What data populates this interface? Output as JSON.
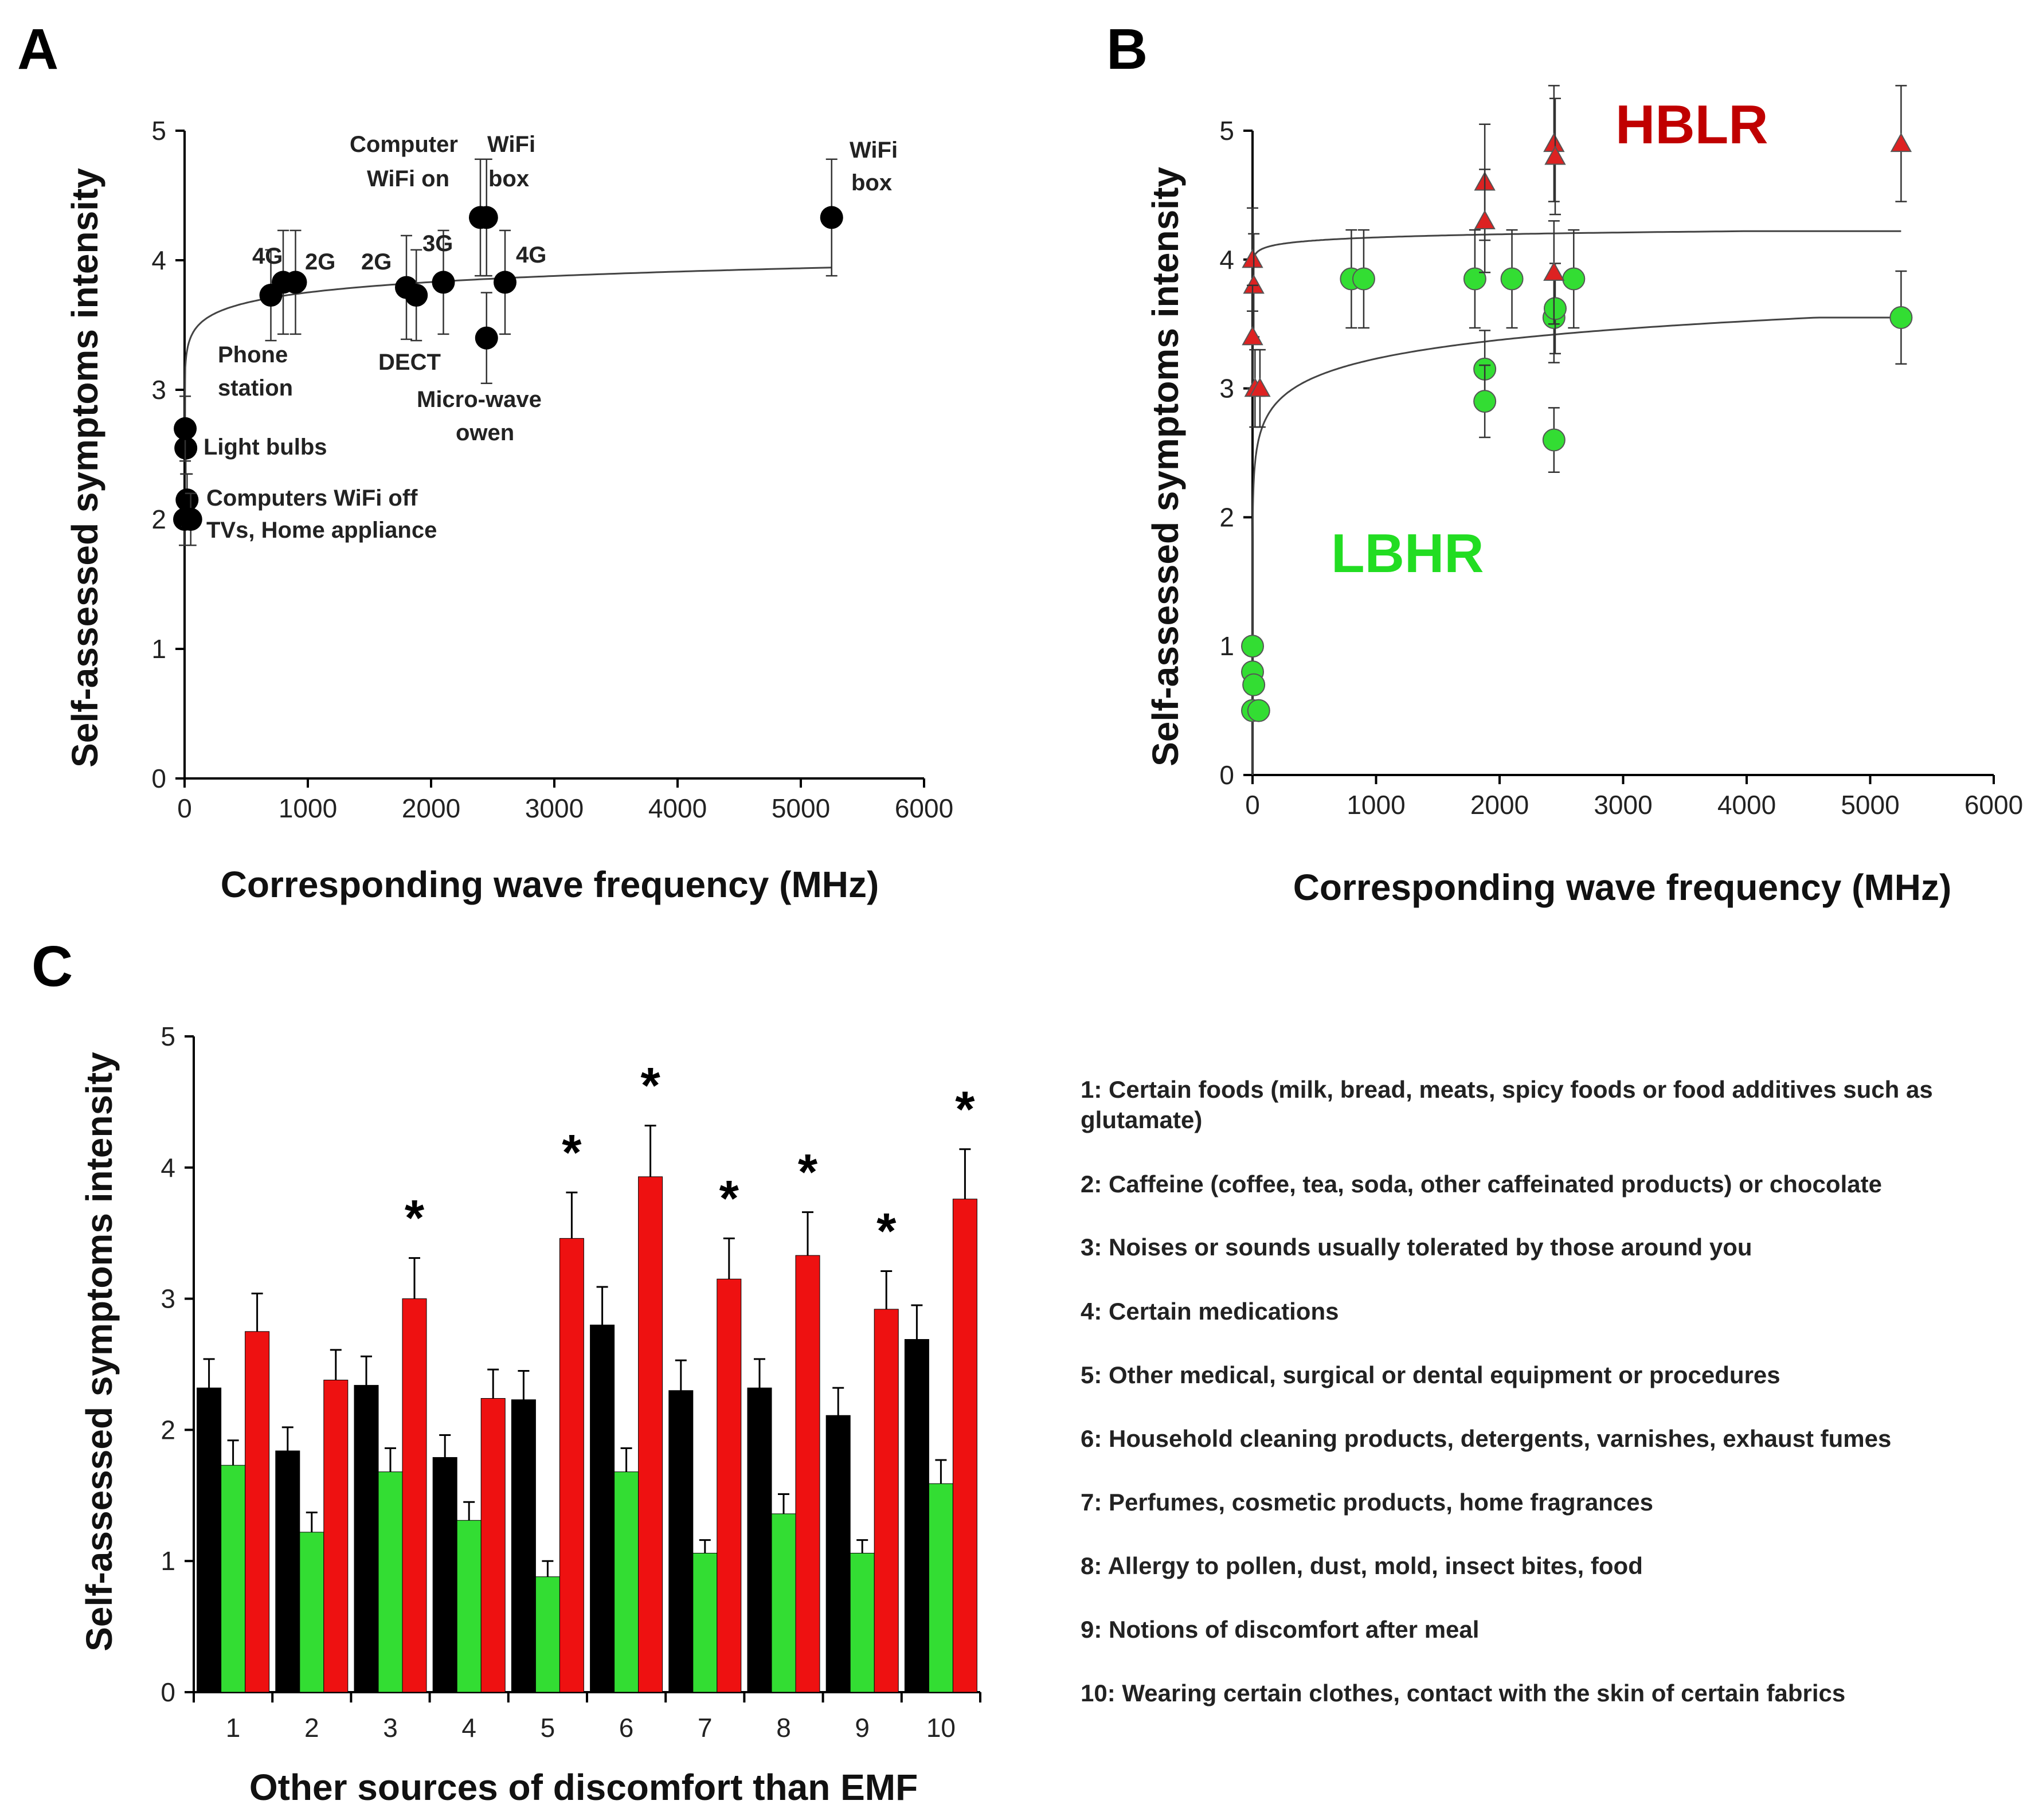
{
  "colors": {
    "black": "#000000",
    "green": "#33dd33",
    "red": "#ee1111",
    "hblr_text": "#c00000",
    "lbhr_text": "#22dd22",
    "curve": "#444444"
  },
  "panels": {
    "a": {
      "letter": "A"
    },
    "b": {
      "letter": "B"
    },
    "c": {
      "letter": "C"
    }
  },
  "chart_data": [
    {
      "panel": "A",
      "type": "scatter",
      "xlabel": "Corresponding wave frequency (MHz)",
      "ylabel": "Self-assessed symptoms intensity",
      "xlim": [
        0,
        6000
      ],
      "ylim": [
        0,
        5
      ],
      "xticks": [
        "0",
        "1000",
        "2000",
        "3000",
        "4000",
        "5000",
        "6000"
      ],
      "yticks": [
        "0",
        "1",
        "2",
        "3",
        "4",
        "5"
      ],
      "points": [
        {
          "x": 0,
          "y": 2.0,
          "err": 0.2
        },
        {
          "x": 20,
          "y": 2.15,
          "err": 0.2
        },
        {
          "x": 10,
          "y": 2.55,
          "err": 0.2
        },
        {
          "x": 5,
          "y": 2.7,
          "err": 0.25
        },
        {
          "x": 50,
          "y": 2.0,
          "err": 0.2
        },
        {
          "x": 700,
          "y": 3.73,
          "err": 0.35
        },
        {
          "x": 800,
          "y": 3.83,
          "err": 0.4
        },
        {
          "x": 900,
          "y": 3.83,
          "err": 0.4
        },
        {
          "x": 1800,
          "y": 3.79,
          "err": 0.4
        },
        {
          "x": 1880,
          "y": 3.73,
          "err": 0.35
        },
        {
          "x": 2100,
          "y": 3.83,
          "err": 0.4
        },
        {
          "x": 2400,
          "y": 4.33,
          "err": 0.45
        },
        {
          "x": 2450,
          "y": 4.33,
          "err": 0.45
        },
        {
          "x": 2450,
          "y": 3.4,
          "err": 0.35
        },
        {
          "x": 2600,
          "y": 3.83,
          "err": 0.4
        },
        {
          "x": 5250,
          "y": 4.33,
          "err": 0.45
        }
      ],
      "fit_curve": "logarithmic",
      "annotations": [
        "Light bulbs",
        "Computers WiFi off",
        "TVs, Home appliance",
        "Phone",
        "station",
        "4G",
        "2G",
        "2G",
        "3G",
        "4G",
        "DECT",
        "Micro-wave",
        "owen",
        "Computer",
        "WiFi on",
        "WiFi",
        "box",
        "WiFi",
        "box"
      ]
    },
    {
      "panel": "B",
      "type": "scatter",
      "xlabel": "Corresponding wave frequency (MHz)",
      "ylabel": "Self-assessed symptoms intensity",
      "xlim": [
        0,
        6000
      ],
      "ylim": [
        0,
        5
      ],
      "xticks": [
        "0",
        "1000",
        "2000",
        "3000",
        "4000",
        "5000",
        "6000"
      ],
      "yticks": [
        "0",
        "1",
        "2",
        "3",
        "4",
        "5"
      ],
      "group_labels": [
        "HBLR",
        "LBHR"
      ],
      "series": [
        {
          "name": "HBLR",
          "marker": "triangle",
          "points": [
            {
              "x": 0,
              "y": 4.0,
              "err": 0.4
            },
            {
              "x": 10,
              "y": 3.8,
              "err": 0.4
            },
            {
              "x": 0,
              "y": 3.4,
              "err": 0.4
            },
            {
              "x": 20,
              "y": 3.0,
              "err": 0.3
            },
            {
              "x": 60,
              "y": 3.0,
              "err": 0.3
            },
            {
              "x": 1880,
              "y": 4.6,
              "err": 0.45
            },
            {
              "x": 1880,
              "y": 4.3,
              "err": 0.4
            },
            {
              "x": 2440,
              "y": 4.9,
              "err": 0.45
            },
            {
              "x": 2450,
              "y": 4.8,
              "err": 0.45
            },
            {
              "x": 2440,
              "y": 3.9,
              "err": 0.4
            },
            {
              "x": 5250,
              "y": 4.9,
              "err": 0.45
            }
          ]
        },
        {
          "name": "LBHR",
          "marker": "circle",
          "points": [
            {
              "x": 0,
              "y": 1.0,
              "err": 0
            },
            {
              "x": 0,
              "y": 0.8,
              "err": 0
            },
            {
              "x": 10,
              "y": 0.7,
              "err": 0
            },
            {
              "x": 0,
              "y": 0.5,
              "err": 0
            },
            {
              "x": 50,
              "y": 0.5,
              "err": 0
            },
            {
              "x": 800,
              "y": 3.85,
              "err": 0.38
            },
            {
              "x": 900,
              "y": 3.85,
              "err": 0.38
            },
            {
              "x": 1800,
              "y": 3.85,
              "err": 0.38
            },
            {
              "x": 1880,
              "y": 3.15,
              "err": 0.3
            },
            {
              "x": 1880,
              "y": 2.9,
              "err": 0.28
            },
            {
              "x": 2100,
              "y": 3.85,
              "err": 0.38
            },
            {
              "x": 2440,
              "y": 3.55,
              "err": 0.35
            },
            {
              "x": 2450,
              "y": 3.62,
              "err": 0.35
            },
            {
              "x": 2440,
              "y": 2.6,
              "err": 0.25
            },
            {
              "x": 2600,
              "y": 3.85,
              "err": 0.38
            },
            {
              "x": 5250,
              "y": 3.55,
              "err": 0.36
            }
          ]
        }
      ]
    },
    {
      "panel": "C",
      "type": "bar",
      "xlabel": "Other sources of discomfort than EMF",
      "ylabel": "Self-assessed symptoms intensity",
      "ylim": [
        0,
        5
      ],
      "yticks": [
        "0",
        "1",
        "2",
        "3",
        "4",
        "5"
      ],
      "categories": [
        "1",
        "2",
        "3",
        "4",
        "5",
        "6",
        "7",
        "8",
        "9",
        "10"
      ],
      "series": [
        {
          "color": "black",
          "values": [
            2.32,
            1.84,
            2.34,
            1.79,
            2.23,
            2.8,
            2.3,
            2.32,
            2.11,
            2.69
          ],
          "err": [
            0.22,
            0.18,
            0.22,
            0.17,
            0.22,
            0.29,
            0.23,
            0.22,
            0.21,
            0.26
          ]
        },
        {
          "color": "green",
          "values": [
            1.73,
            1.22,
            1.68,
            1.31,
            0.88,
            1.68,
            1.06,
            1.36,
            1.06,
            1.59
          ],
          "err": [
            0.19,
            0.15,
            0.18,
            0.14,
            0.12,
            0.18,
            0.1,
            0.15,
            0.1,
            0.18
          ]
        },
        {
          "color": "red",
          "values": [
            2.75,
            2.38,
            3.0,
            2.24,
            3.46,
            3.93,
            3.15,
            3.33,
            2.92,
            3.76
          ],
          "err": [
            0.29,
            0.23,
            0.31,
            0.22,
            0.35,
            0.39,
            0.31,
            0.33,
            0.29,
            0.38
          ]
        }
      ],
      "significance": [
        "",
        "",
        "*",
        "",
        "*",
        "*",
        "*",
        "*",
        "*",
        "*"
      ],
      "legend": [
        "1: Certain foods (milk, bread, meats, spicy foods or food additives such as",
        "glutamate)",
        "2: Caffeine (coffee, tea, soda, other caffeinated products) or chocolate",
        "3: Noises or sounds usually tolerated by those around you",
        "4: Certain medications",
        "5: Other medical, surgical or dental equipment or procedures",
        "6: Household cleaning products, detergents, varnishes, exhaust fumes",
        "7: Perfumes, cosmetic products, home fragrances",
        "8: Allergy to pollen, dust, mold, insect bites, food",
        "9: Notions of discomfort after meal",
        "10: Wearing certain clothes, contact with the skin of certain fabrics"
      ]
    }
  ]
}
